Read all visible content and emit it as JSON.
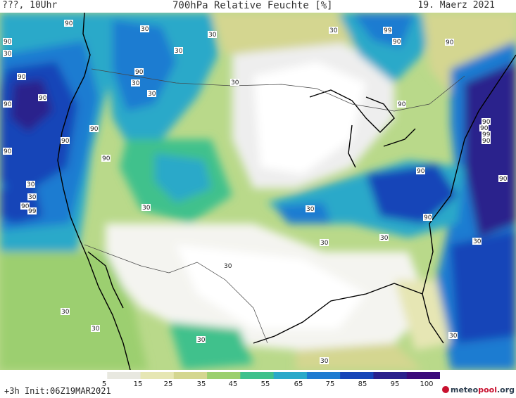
{
  "header": {
    "left": "???, 10Uhr",
    "center": "700hPa Relative Feuchte [%]",
    "right": "19. Maerz 2021"
  },
  "map": {
    "labels": [
      "90",
      "30",
      "30",
      "30",
      "99",
      "90",
      "90",
      "30",
      "90",
      "90",
      "90",
      "30",
      "30",
      "90",
      "30",
      "90",
      "90",
      "90",
      "30",
      "90",
      "90",
      "30",
      "90",
      "99",
      "30",
      "30",
      "90",
      "30",
      "30",
      "30",
      "30",
      "90",
      "90",
      "90",
      "30",
      "30",
      "30",
      "30",
      "30",
      "30",
      "30",
      "99",
      "90",
      "90",
      "90"
    ]
  },
  "colorbar": {
    "ticks": [
      "5",
      "15",
      "25",
      "35",
      "45",
      "55",
      "65",
      "75",
      "85",
      "95",
      "100"
    ],
    "colors": [
      "#ffffff",
      "#e8e8e0",
      "#e6e6b4",
      "#d4d690",
      "#9ccf6f",
      "#3fc18c",
      "#2aa9c9",
      "#1e7bd1",
      "#1745b8",
      "#2a208c",
      "#3a0a7a"
    ]
  },
  "footer": {
    "text": "+3h Init:06Z19MAR2021"
  },
  "logo": {
    "part1": "meteo",
    "part2": "pool",
    "part3": ".org"
  }
}
